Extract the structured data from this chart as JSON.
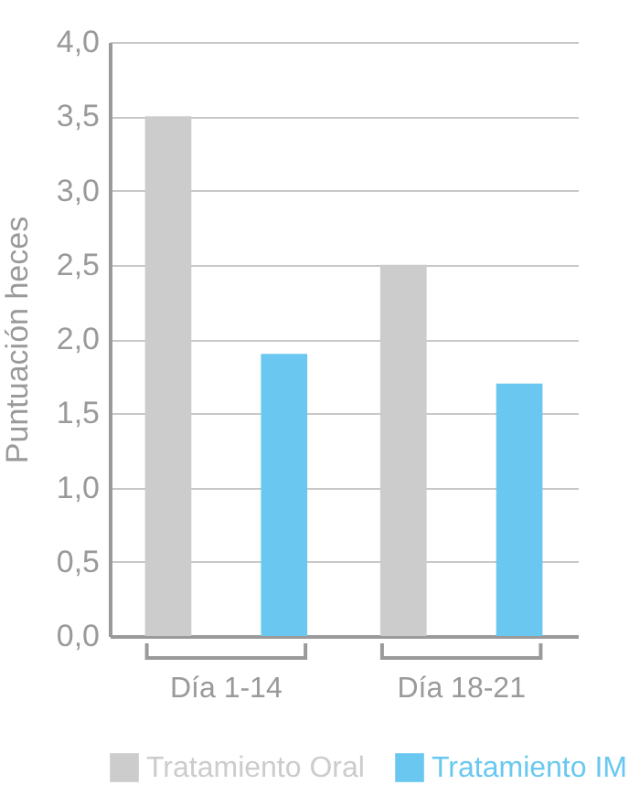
{
  "chart_data": {
    "type": "bar",
    "ylabel": "Puntuación heces",
    "categories": [
      "Día 1-14",
      "Día 18-21"
    ],
    "series": [
      {
        "name": "Tratamiento Oral",
        "color": "#cccccc",
        "values": [
          3.5,
          2.5
        ]
      },
      {
        "name": "Tratamiento IM",
        "color": "#6ac8f0",
        "values": [
          1.9,
          1.7
        ]
      }
    ],
    "ylim": [
      0,
      4
    ],
    "yticks": [
      {
        "value": 0,
        "label": "0,0"
      },
      {
        "value": 0.5,
        "label": "0,5"
      },
      {
        "value": 1,
        "label": "1,0"
      },
      {
        "value": 1.5,
        "label": "1,5"
      },
      {
        "value": 2,
        "label": "2,0"
      },
      {
        "value": 2.5,
        "label": "2,5"
      },
      {
        "value": 3,
        "label": "3,0"
      },
      {
        "value": 3.5,
        "label": "3,5"
      },
      {
        "value": 4,
        "label": "4,0"
      }
    ],
    "grid": "y",
    "legend": "bottom"
  }
}
